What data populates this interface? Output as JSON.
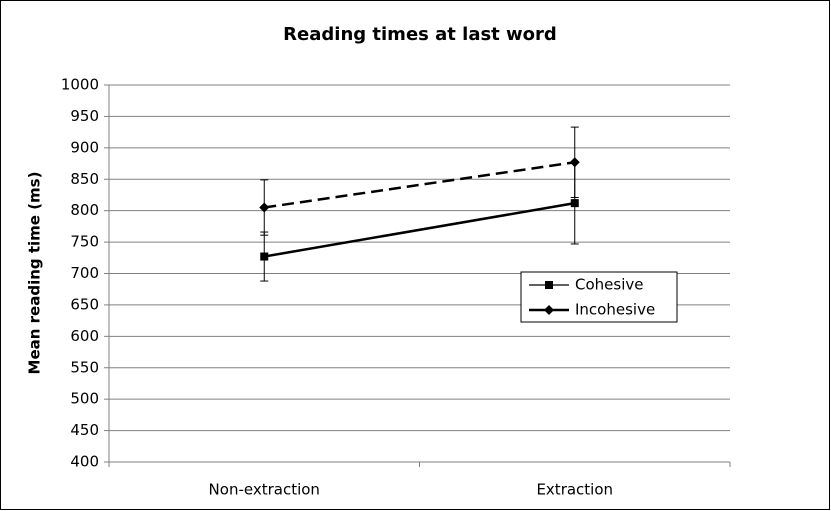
{
  "chart_data": {
    "type": "line",
    "title": "Reading times at last word",
    "y_label": "Mean reading time (ms)",
    "categories": [
      "Non-extraction",
      "Extraction"
    ],
    "series": [
      {
        "name": "Cohesive",
        "color": "#000000",
        "line_style": "solid",
        "marker": "square",
        "values": [
          727,
          812
        ],
        "errors": [
          39,
          65
        ]
      },
      {
        "name": "Incohesive",
        "color": "#000000",
        "line_style": "dashed",
        "marker": "diamond",
        "values": [
          805,
          877
        ],
        "errors": [
          44,
          56
        ]
      }
    ],
    "ylim": [
      400,
      1000
    ],
    "yticks": [
      400,
      450,
      500,
      550,
      600,
      650,
      700,
      750,
      800,
      850,
      900,
      950,
      1000
    ],
    "grid": true,
    "legend": "right"
  }
}
